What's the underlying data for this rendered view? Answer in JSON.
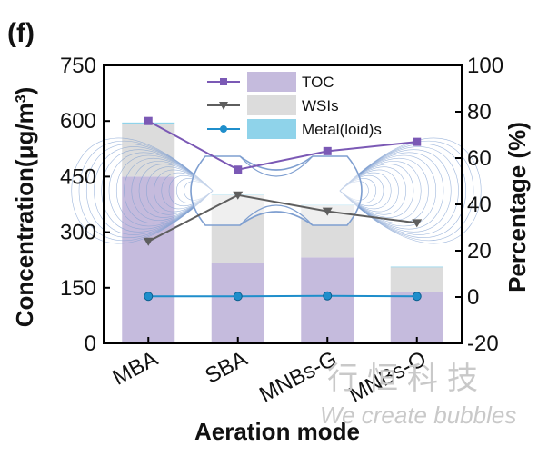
{
  "panel_label": "(f)",
  "watermark": {
    "cn": "行恒科技",
    "en": "We create bubbles"
  },
  "colors": {
    "toc_bar": "#c5bbdd",
    "wsi_bar": "#dcdcdc",
    "metal_bar": "#8fd3ea",
    "toc_line": "#7b59b5",
    "wsi_line": "#5e5e5e",
    "metal_line": "#1f8ecb",
    "logo_lines": "#7f9fd0"
  },
  "chart_data": {
    "type": "bar",
    "stacked": true,
    "categories": [
      "MBA",
      "SBA",
      "MNBs-G",
      "MNBs-O"
    ],
    "xlabel": "Aeration mode",
    "ylabel": "Concentration(μg/m³)",
    "ylabel_parts": [
      "Concentration(μg/m",
      "3",
      ")"
    ],
    "y2label": "Percentage (%)",
    "ylim": [
      0,
      750
    ],
    "yticks": [
      0,
      150,
      300,
      450,
      600,
      750
    ],
    "y2lim": [
      -20,
      100
    ],
    "y2ticks": [
      -20,
      0,
      20,
      40,
      60,
      80,
      100
    ],
    "series": [
      {
        "name": "TOC",
        "values": [
          450,
          218,
          232,
          138
        ]
      },
      {
        "name": "WSIs",
        "values": [
          143,
          182,
          140,
          67
        ]
      },
      {
        "name": "Metal(loid)s",
        "values": [
          3,
          2,
          2,
          2
        ]
      }
    ],
    "lines": [
      {
        "name": "TOC",
        "axis": "right",
        "marker": "square",
        "values": [
          76,
          55,
          63,
          67
        ]
      },
      {
        "name": "WSIs",
        "axis": "right",
        "marker": "triangle-down",
        "values": [
          24,
          44,
          37,
          32
        ]
      },
      {
        "name": "Metal(loid)s",
        "axis": "right",
        "marker": "circle",
        "values": [
          0.3,
          0.3,
          0.5,
          0.3
        ]
      }
    ],
    "legend": [
      "TOC",
      "WSIs",
      "Metal(loid)s"
    ],
    "legend_position": "top"
  }
}
